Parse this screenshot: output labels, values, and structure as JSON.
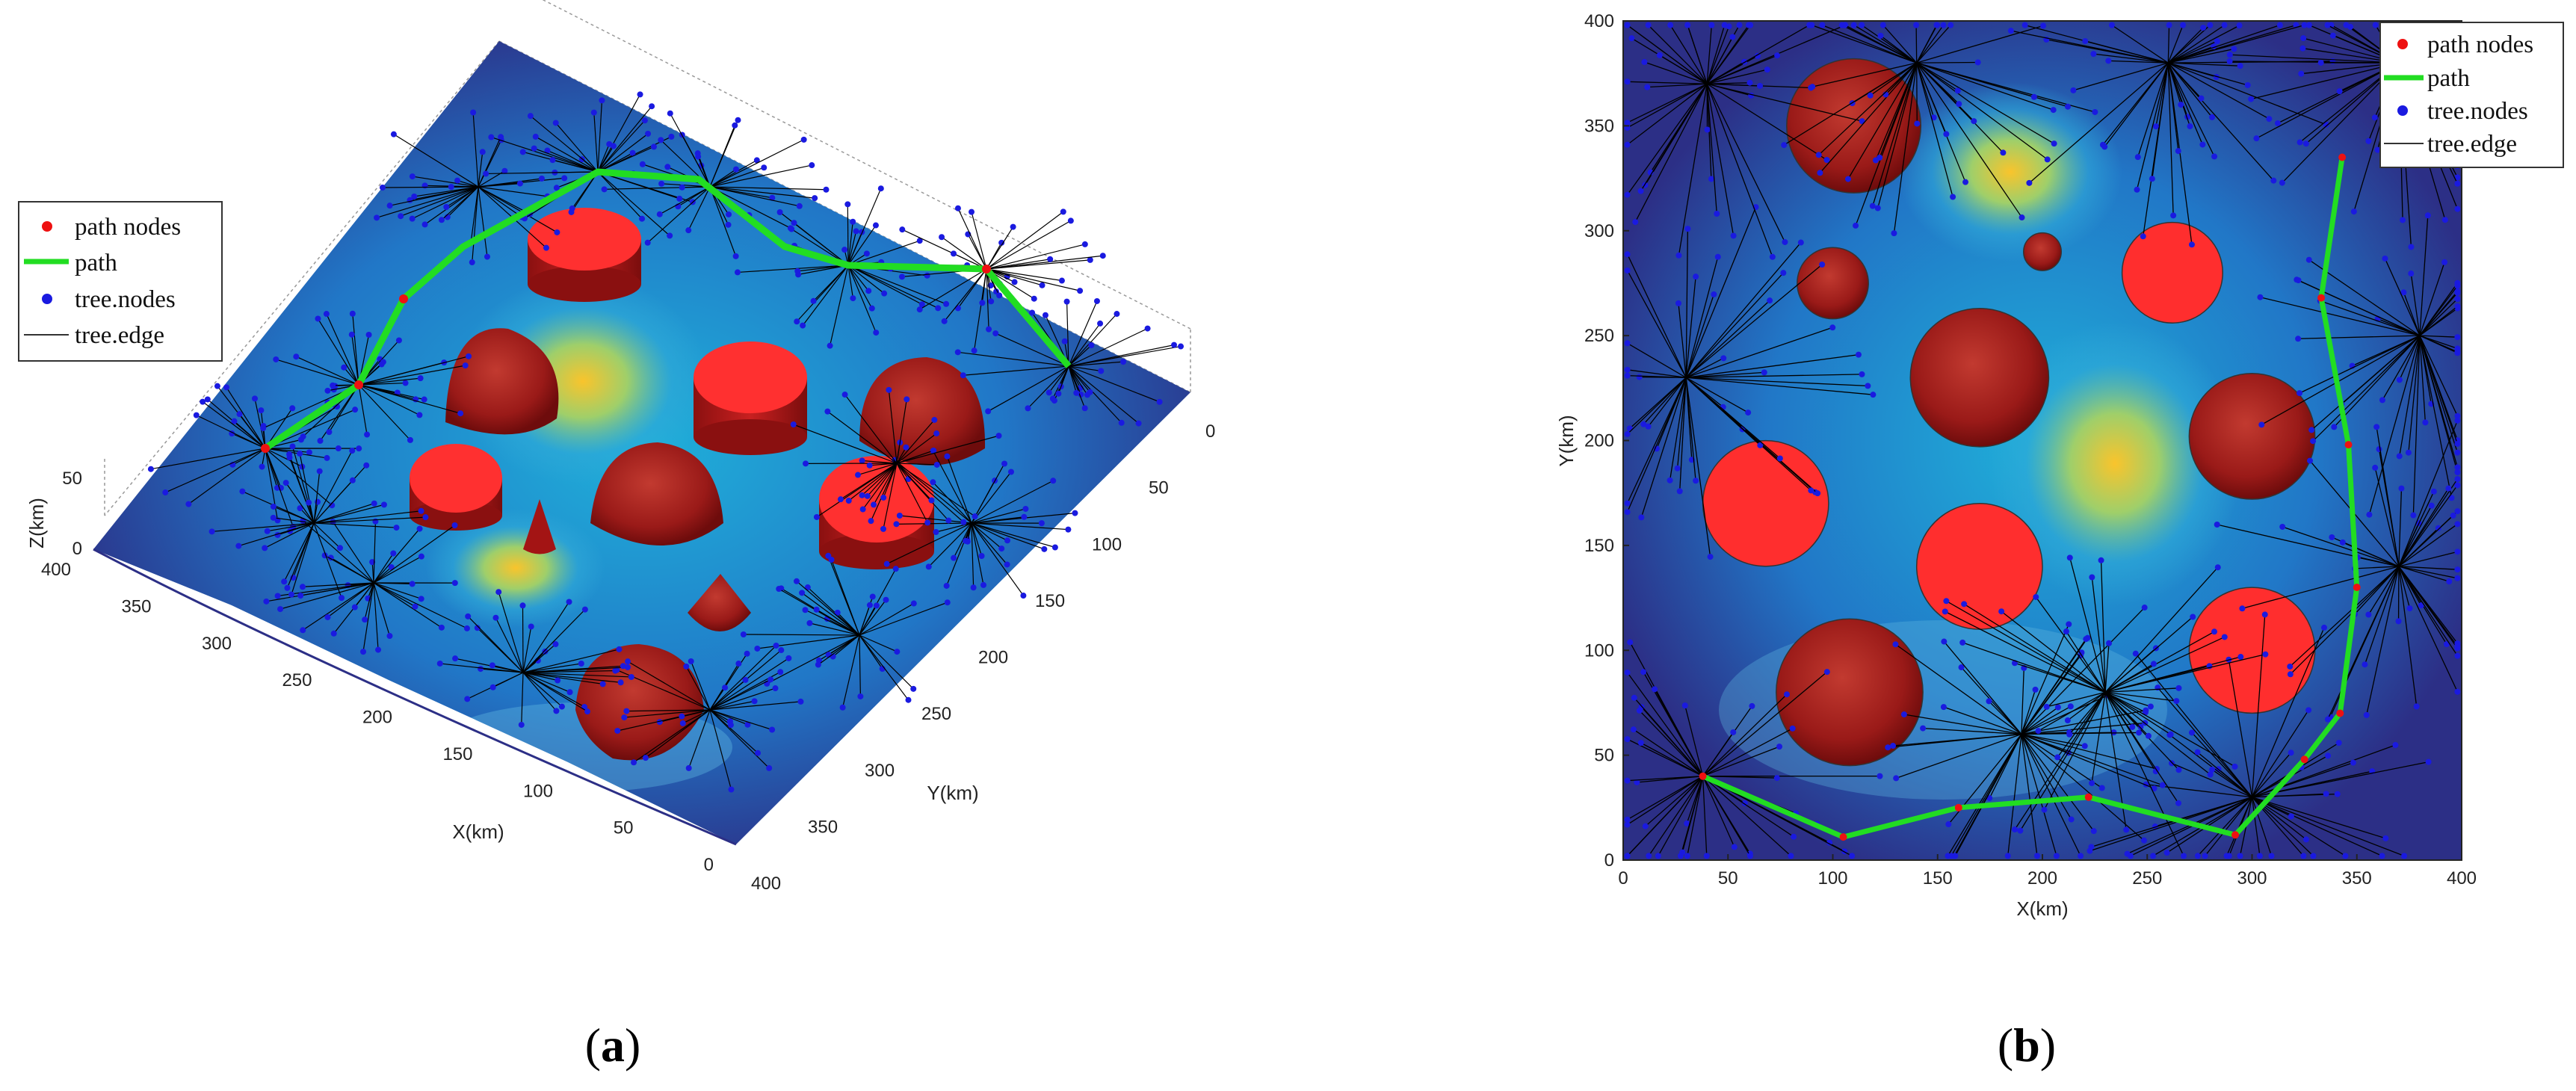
{
  "colors": {
    "terrain_low": "#2c2f86",
    "terrain_mid": "#1f9bd6",
    "terrain_high": "#f7c02b",
    "obstacle": "#ff2e2e",
    "obstacle_dark": "#a31414",
    "path": "#22dd22",
    "path_node": "#ee1111",
    "tree_node": "#1a1ae0",
    "tree_edge": "#000000"
  },
  "chart_data": [
    {
      "type": "scatter",
      "view": "3d",
      "caption": "a",
      "xlabel": "X(km)",
      "ylabel": "Y(km)",
      "zlabel": "Z(km)",
      "xlim": [
        0,
        400
      ],
      "ylim": [
        0,
        400
      ],
      "zlim": [
        0,
        50
      ],
      "x_ticks": [
        "400",
        "350",
        "300",
        "250",
        "200",
        "150",
        "100",
        "50",
        "0"
      ],
      "y_ticks": [
        "0",
        "50",
        "100",
        "150",
        "200",
        "250",
        "300",
        "350",
        "400"
      ],
      "z_ticks": [
        "50",
        "0"
      ],
      "legend": {
        "placement": "top-left",
        "entries": [
          "path nodes",
          "path",
          "tree.nodes",
          "tree.edge"
        ]
      },
      "grid": true
    },
    {
      "type": "scatter",
      "view": "top",
      "caption": "b",
      "xlabel": "X(km)",
      "ylabel": "Y(km)",
      "xlim": [
        0,
        400
      ],
      "ylim": [
        0,
        400
      ],
      "x_ticks": [
        "0",
        "50",
        "100",
        "150",
        "200",
        "250",
        "300",
        "350",
        "400"
      ],
      "y_ticks": [
        "0",
        "50",
        "100",
        "150",
        "200",
        "250",
        "300",
        "350",
        "400"
      ],
      "legend": {
        "placement": "top-right",
        "entries": [
          "path nodes",
          "path",
          "tree.nodes",
          "tree.edge"
        ]
      },
      "obstacles": [
        {
          "x": 110,
          "y": 350,
          "r": 32,
          "kind": "hemisphere"
        },
        {
          "x": 100,
          "y": 275,
          "r": 17,
          "kind": "hemisphere"
        },
        {
          "x": 200,
          "y": 290,
          "r": 9,
          "kind": "hemisphere"
        },
        {
          "x": 262,
          "y": 280,
          "r": 24,
          "kind": "cylinder"
        },
        {
          "x": 170,
          "y": 230,
          "r": 33,
          "kind": "hemisphere"
        },
        {
          "x": 300,
          "y": 202,
          "r": 30,
          "kind": "hemisphere"
        },
        {
          "x": 68,
          "y": 170,
          "r": 30,
          "kind": "cylinder"
        },
        {
          "x": 170,
          "y": 140,
          "r": 30,
          "kind": "cylinder"
        },
        {
          "x": 300,
          "y": 100,
          "r": 30,
          "kind": "cylinder"
        },
        {
          "x": 108,
          "y": 80,
          "r": 35,
          "kind": "hemisphere"
        }
      ],
      "path": [
        {
          "x": 38,
          "y": 40
        },
        {
          "x": 105,
          "y": 11
        },
        {
          "x": 160,
          "y": 25
        },
        {
          "x": 222,
          "y": 30
        },
        {
          "x": 292,
          "y": 12
        },
        {
          "x": 325,
          "y": 48
        },
        {
          "x": 342,
          "y": 70
        },
        {
          "x": 350,
          "y": 130
        },
        {
          "x": 346,
          "y": 198
        },
        {
          "x": 333,
          "y": 268
        },
        {
          "x": 343,
          "y": 335
        }
      ]
    }
  ]
}
